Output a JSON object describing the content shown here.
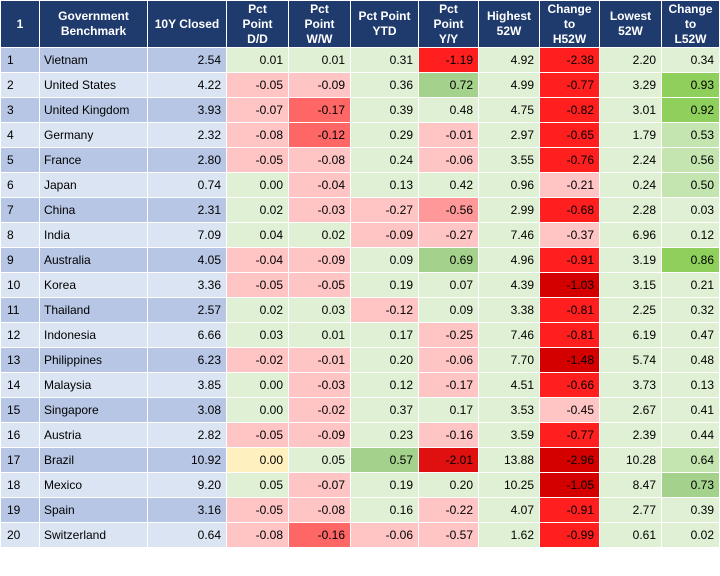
{
  "table": {
    "headers": [
      "1",
      "Government\nBenchmark",
      "10Y Closed",
      "Pct\nPoint\nD/D",
      "Pct\nPoint\nW/W",
      "Pct Point\nYTD",
      "Pct\nPoint\nY/Y",
      "Highest\n52W",
      "Change\nto\nH52W",
      "Lowest\n52W",
      "Change\nto\nL52W"
    ],
    "rows": [
      [
        "1",
        "Vietnam",
        "2.54",
        "0.01",
        "0.01",
        "0.31",
        "-1.19",
        "4.92",
        "-2.38",
        "2.20",
        "0.34"
      ],
      [
        "2",
        "United States",
        "4.22",
        "-0.05",
        "-0.09",
        "0.36",
        "0.72",
        "4.99",
        "-0.77",
        "3.29",
        "0.93"
      ],
      [
        "3",
        "United Kingdom",
        "3.93",
        "-0.07",
        "-0.17",
        "0.39",
        "0.48",
        "4.75",
        "-0.82",
        "3.01",
        "0.92"
      ],
      [
        "4",
        "Germany",
        "2.32",
        "-0.08",
        "-0.12",
        "0.29",
        "-0.01",
        "2.97",
        "-0.65",
        "1.79",
        "0.53"
      ],
      [
        "5",
        "France",
        "2.80",
        "-0.05",
        "-0.08",
        "0.24",
        "-0.06",
        "3.55",
        "-0.76",
        "2.24",
        "0.56"
      ],
      [
        "6",
        "Japan",
        "0.74",
        "0.00",
        "-0.04",
        "0.13",
        "0.42",
        "0.96",
        "-0.21",
        "0.24",
        "0.50"
      ],
      [
        "7",
        "China",
        "2.31",
        "0.02",
        "-0.03",
        "-0.27",
        "-0.56",
        "2.99",
        "-0.68",
        "2.28",
        "0.03"
      ],
      [
        "8",
        "India",
        "7.09",
        "0.04",
        "0.02",
        "-0.09",
        "-0.27",
        "7.46",
        "-0.37",
        "6.96",
        "0.12"
      ],
      [
        "9",
        "Australia",
        "4.05",
        "-0.04",
        "-0.09",
        "0.09",
        "0.69",
        "4.96",
        "-0.91",
        "3.19",
        "0.86"
      ],
      [
        "10",
        "Korea",
        "3.36",
        "-0.05",
        "-0.05",
        "0.19",
        "0.07",
        "4.39",
        "-1.03",
        "3.15",
        "0.21"
      ],
      [
        "11",
        "Thailand",
        "2.57",
        "0.02",
        "0.03",
        "-0.12",
        "0.09",
        "3.38",
        "-0.81",
        "2.25",
        "0.32"
      ],
      [
        "12",
        "Indonesia",
        "6.66",
        "0.03",
        "0.01",
        "0.17",
        "-0.25",
        "7.46",
        "-0.81",
        "6.19",
        "0.47"
      ],
      [
        "13",
        "Philippines",
        "6.23",
        "-0.02",
        "-0.01",
        "0.20",
        "-0.06",
        "7.70",
        "-1.48",
        "5.74",
        "0.48"
      ],
      [
        "14",
        "Malaysia",
        "3.85",
        "0.00",
        "-0.03",
        "0.12",
        "-0.17",
        "4.51",
        "-0.66",
        "3.73",
        "0.13"
      ],
      [
        "15",
        "Singapore",
        "3.08",
        "0.00",
        "-0.02",
        "0.37",
        "0.17",
        "3.53",
        "-0.45",
        "2.67",
        "0.41"
      ],
      [
        "16",
        "Austria",
        "2.82",
        "-0.05",
        "-0.09",
        "0.23",
        "-0.16",
        "3.59",
        "-0.77",
        "2.39",
        "0.44"
      ],
      [
        "17",
        "Brazil",
        "10.92",
        "0.00",
        "0.05",
        "0.57",
        "-2.01",
        "13.88",
        "-2.96",
        "10.28",
        "0.64"
      ],
      [
        "18",
        "Mexico",
        "9.20",
        "0.05",
        "-0.07",
        "0.19",
        "0.20",
        "10.25",
        "-1.05",
        "8.47",
        "0.73"
      ],
      [
        "19",
        "Spain",
        "3.16",
        "-0.05",
        "-0.08",
        "0.16",
        "-0.22",
        "4.07",
        "-0.91",
        "2.77",
        "0.39"
      ],
      [
        "20",
        "Switzerland",
        "0.64",
        "-0.08",
        "-0.16",
        "-0.06",
        "-0.57",
        "1.62",
        "-0.99",
        "0.61",
        "0.02"
      ]
    ],
    "cell_colors": [
      [
        "",
        "",
        "",
        "#dff0d4",
        "#dff0d4",
        "#dff0d4",
        "#ff1f1f",
        "#dff0d4",
        "#ff1f1f",
        "#dff0d4",
        "#dff0d4"
      ],
      [
        "",
        "",
        "",
        "#ffc4c4",
        "#ffc4c4",
        "#dff0d4",
        "#a4d28c",
        "#dff0d4",
        "#ff1f1f",
        "#dff0d4",
        "#8fd05c"
      ],
      [
        "",
        "",
        "",
        "#ffc4c4",
        "#ff6666",
        "#dff0d4",
        "#dff0d4",
        "#dff0d4",
        "#ff1f1f",
        "#dff0d4",
        "#8fd05c"
      ],
      [
        "",
        "",
        "",
        "#ffc4c4",
        "#ff6666",
        "#dff0d4",
        "#ffc4c4",
        "#dff0d4",
        "#ff1f1f",
        "#dff0d4",
        "#c4e4b0"
      ],
      [
        "",
        "",
        "",
        "#ffc4c4",
        "#ffc4c4",
        "#dff0d4",
        "#ffc4c4",
        "#dff0d4",
        "#ff1f1f",
        "#dff0d4",
        "#c4e4b0"
      ],
      [
        "",
        "",
        "",
        "#dff0d4",
        "#ffc4c4",
        "#dff0d4",
        "#dff0d4",
        "#dff0d4",
        "#ffc4c4",
        "#dff0d4",
        "#c4e4b0"
      ],
      [
        "",
        "",
        "",
        "#dff0d4",
        "#ffc4c4",
        "#ffc4c4",
        "#ff9999",
        "#dff0d4",
        "#ff1f1f",
        "#dff0d4",
        "#dff0d4"
      ],
      [
        "",
        "",
        "",
        "#dff0d4",
        "#dff0d4",
        "#ffc4c4",
        "#ffc4c4",
        "#dff0d4",
        "#ffc4c4",
        "#dff0d4",
        "#dff0d4"
      ],
      [
        "",
        "",
        "",
        "#ffc4c4",
        "#ffc4c4",
        "#dff0d4",
        "#a4d28c",
        "#dff0d4",
        "#ff1f1f",
        "#dff0d4",
        "#8fd05c"
      ],
      [
        "",
        "",
        "",
        "#ffc4c4",
        "#ffc4c4",
        "#dff0d4",
        "#dff0d4",
        "#dff0d4",
        "#d40000",
        "#dff0d4",
        "#dff0d4"
      ],
      [
        "",
        "",
        "",
        "#dff0d4",
        "#dff0d4",
        "#ffc4c4",
        "#dff0d4",
        "#dff0d4",
        "#ff1f1f",
        "#dff0d4",
        "#dff0d4"
      ],
      [
        "",
        "",
        "",
        "#dff0d4",
        "#dff0d4",
        "#dff0d4",
        "#ffc4c4",
        "#dff0d4",
        "#ff1f1f",
        "#dff0d4",
        "#dff0d4"
      ],
      [
        "",
        "",
        "",
        "#ffc4c4",
        "#ffc4c4",
        "#dff0d4",
        "#ffc4c4",
        "#dff0d4",
        "#d40000",
        "#dff0d4",
        "#dff0d4"
      ],
      [
        "",
        "",
        "",
        "#dff0d4",
        "#ffc4c4",
        "#dff0d4",
        "#ffc4c4",
        "#dff0d4",
        "#ff1f1f",
        "#dff0d4",
        "#dff0d4"
      ],
      [
        "",
        "",
        "",
        "#dff0d4",
        "#ffc4c4",
        "#dff0d4",
        "#dff0d4",
        "#dff0d4",
        "#ffc4c4",
        "#dff0d4",
        "#dff0d4"
      ],
      [
        "",
        "",
        "",
        "#ffc4c4",
        "#ffc4c4",
        "#dff0d4",
        "#ffc4c4",
        "#dff0d4",
        "#ff1f1f",
        "#dff0d4",
        "#dff0d4"
      ],
      [
        "",
        "",
        "",
        "#fff0c0",
        "#dff0d4",
        "#a4d28c",
        "#e01010",
        "#dff0d4",
        "#d40000",
        "#dff0d4",
        "#c4e4b0"
      ],
      [
        "",
        "",
        "",
        "#dff0d4",
        "#ffc4c4",
        "#dff0d4",
        "#dff0d4",
        "#dff0d4",
        "#d40000",
        "#dff0d4",
        "#a4d28c"
      ],
      [
        "",
        "",
        "",
        "#ffc4c4",
        "#ffc4c4",
        "#dff0d4",
        "#ffc4c4",
        "#dff0d4",
        "#ff1f1f",
        "#dff0d4",
        "#dff0d4"
      ],
      [
        "",
        "",
        "",
        "#ffc4c4",
        "#ff6666",
        "#ffc4c4",
        "#ffc4c4",
        "#dff0d4",
        "#ff1f1f",
        "#dff0d4",
        "#dff0d4"
      ]
    ]
  }
}
